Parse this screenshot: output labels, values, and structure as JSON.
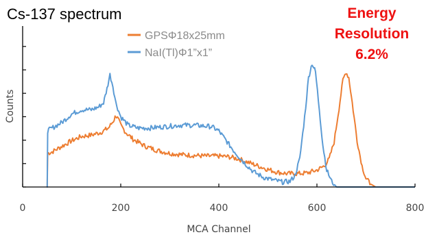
{
  "colors": {
    "orange": "#ed7d31",
    "blue": "#5b9bd5",
    "annotation": "#ee1111",
    "axis": "#000000"
  },
  "chart_data": {
    "type": "line",
    "title": "Cs-137 spectrum",
    "xlabel": "MCA Channel",
    "ylabel": "Counts",
    "xlim": [
      0,
      800
    ],
    "ylim": [
      0,
      1
    ],
    "x_ticks": [
      0,
      200,
      400,
      600,
      800
    ],
    "grid": false,
    "legend_position": "top-center",
    "annotation": {
      "line1": "Energy",
      "line2": "Resolution",
      "line3": "6.2%"
    },
    "series": [
      {
        "name": "GPSΦ18x25mm",
        "color": "#ed7d31",
        "points": [
          [
            49,
            0
          ],
          [
            50,
            0
          ],
          [
            51,
            0.24
          ],
          [
            60,
            0.25
          ],
          [
            80,
            0.29
          ],
          [
            100,
            0.33
          ],
          [
            120,
            0.36
          ],
          [
            140,
            0.37
          ],
          [
            160,
            0.39
          ],
          [
            175,
            0.42
          ],
          [
            185,
            0.47
          ],
          [
            190,
            0.51
          ],
          [
            195,
            0.48
          ],
          [
            200,
            0.44
          ],
          [
            210,
            0.39
          ],
          [
            225,
            0.34
          ],
          [
            250,
            0.29
          ],
          [
            275,
            0.26
          ],
          [
            300,
            0.24
          ],
          [
            325,
            0.23
          ],
          [
            350,
            0.225
          ],
          [
            375,
            0.22
          ],
          [
            400,
            0.22
          ],
          [
            420,
            0.215
          ],
          [
            440,
            0.2
          ],
          [
            460,
            0.175
          ],
          [
            480,
            0.15
          ],
          [
            500,
            0.125
          ],
          [
            520,
            0.105
          ],
          [
            540,
            0.095
          ],
          [
            560,
            0.095
          ],
          [
            580,
            0.1
          ],
          [
            600,
            0.12
          ],
          [
            615,
            0.15
          ],
          [
            625,
            0.2
          ],
          [
            635,
            0.32
          ],
          [
            645,
            0.56
          ],
          [
            653,
            0.76
          ],
          [
            659,
            0.82
          ],
          [
            665,
            0.78
          ],
          [
            672,
            0.6
          ],
          [
            682,
            0.33
          ],
          [
            692,
            0.15
          ],
          [
            700,
            0.06
          ],
          [
            710,
            0.02
          ],
          [
            720,
            0.0
          ],
          [
            800,
            0.0
          ]
        ]
      },
      {
        "name": "NaI(Tl)Φ1”x1”",
        "color": "#5b9bd5",
        "points": [
          [
            49,
            0
          ],
          [
            50,
            0
          ],
          [
            51,
            0.4
          ],
          [
            60,
            0.42
          ],
          [
            80,
            0.46
          ],
          [
            100,
            0.52
          ],
          [
            120,
            0.55
          ],
          [
            140,
            0.55
          ],
          [
            155,
            0.57
          ],
          [
            165,
            0.6
          ],
          [
            172,
            0.7
          ],
          [
            178,
            0.8
          ],
          [
            184,
            0.72
          ],
          [
            190,
            0.6
          ],
          [
            200,
            0.5
          ],
          [
            215,
            0.44
          ],
          [
            235,
            0.42
          ],
          [
            260,
            0.42
          ],
          [
            290,
            0.43
          ],
          [
            320,
            0.44
          ],
          [
            350,
            0.44
          ],
          [
            385,
            0.43
          ],
          [
            400,
            0.4
          ],
          [
            415,
            0.33
          ],
          [
            430,
            0.26
          ],
          [
            450,
            0.18
          ],
          [
            470,
            0.11
          ],
          [
            490,
            0.07
          ],
          [
            510,
            0.05
          ],
          [
            530,
            0.035
          ],
          [
            545,
            0.04
          ],
          [
            555,
            0.08
          ],
          [
            565,
            0.2
          ],
          [
            575,
            0.5
          ],
          [
            583,
            0.78
          ],
          [
            590,
            0.88
          ],
          [
            597,
            0.82
          ],
          [
            605,
            0.55
          ],
          [
            612,
            0.3
          ],
          [
            620,
            0.12
          ],
          [
            630,
            0.04
          ],
          [
            640,
            0.0
          ],
          [
            800,
            0.0
          ]
        ]
      }
    ]
  }
}
